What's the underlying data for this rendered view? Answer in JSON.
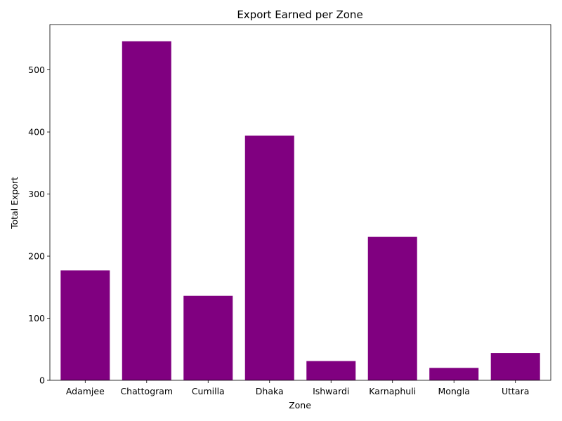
{
  "chart_data": {
    "type": "bar",
    "title": "Export Earned per Zone",
    "xlabel": "Zone",
    "ylabel": "Total Export",
    "categories": [
      "Adamjee",
      "Chattogram",
      "Cumilla",
      "Dhaka",
      "Ishwardi",
      "Karnaphuli",
      "Mongla",
      "Uttara"
    ],
    "values": [
      177,
      546,
      136,
      394,
      31,
      231,
      20,
      44
    ],
    "ylim": [
      0,
      573
    ],
    "yticks": [
      0,
      100,
      200,
      300,
      400,
      500
    ],
    "grid": false,
    "legend": "none",
    "bar_color": "#800080"
  }
}
